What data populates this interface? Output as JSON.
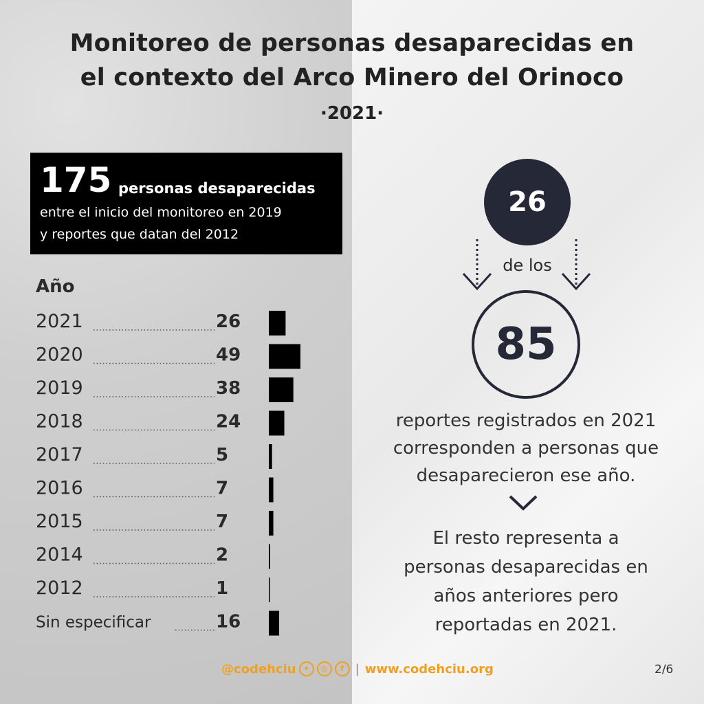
{
  "title_line1": "Monitoreo de personas desaparecidas en",
  "title_line2": "el contexto del Arco Minero del Orinoco",
  "year_subtitle": "·2021·",
  "summary": {
    "total": "175",
    "label": "personas desaparecidas",
    "line1": "entre el inicio del monitoreo en 2019",
    "line2": "y reportes que datan del 2012"
  },
  "chart_data": {
    "type": "bar",
    "orientation": "horizontal",
    "title": "Año",
    "categories": [
      "2021",
      "2020",
      "2019",
      "2018",
      "2017",
      "2016",
      "2015",
      "2014",
      "2012",
      "Sin especificar"
    ],
    "values": [
      26,
      49,
      38,
      24,
      5,
      7,
      7,
      2,
      1,
      16
    ],
    "bar_color": "#000000"
  },
  "highlight": {
    "count": "26",
    "connector": "de los",
    "total": "85",
    "paragraph1_lines": [
      "reportes registrados en 2021",
      "corresponden a personas que",
      "desaparecieron ese año."
    ],
    "paragraph2_lines": [
      "El resto representa a",
      "personas desaparecidas en",
      "años anteriores pero",
      "reportadas en 2021."
    ]
  },
  "footer": {
    "handle": "@codehciu",
    "icons": [
      "twitter-icon",
      "instagram-icon",
      "facebook-icon"
    ],
    "website": "www.codehciu.org",
    "page": "2/6"
  },
  "colors": {
    "accent": "#f0a020",
    "dark": "#252836"
  }
}
